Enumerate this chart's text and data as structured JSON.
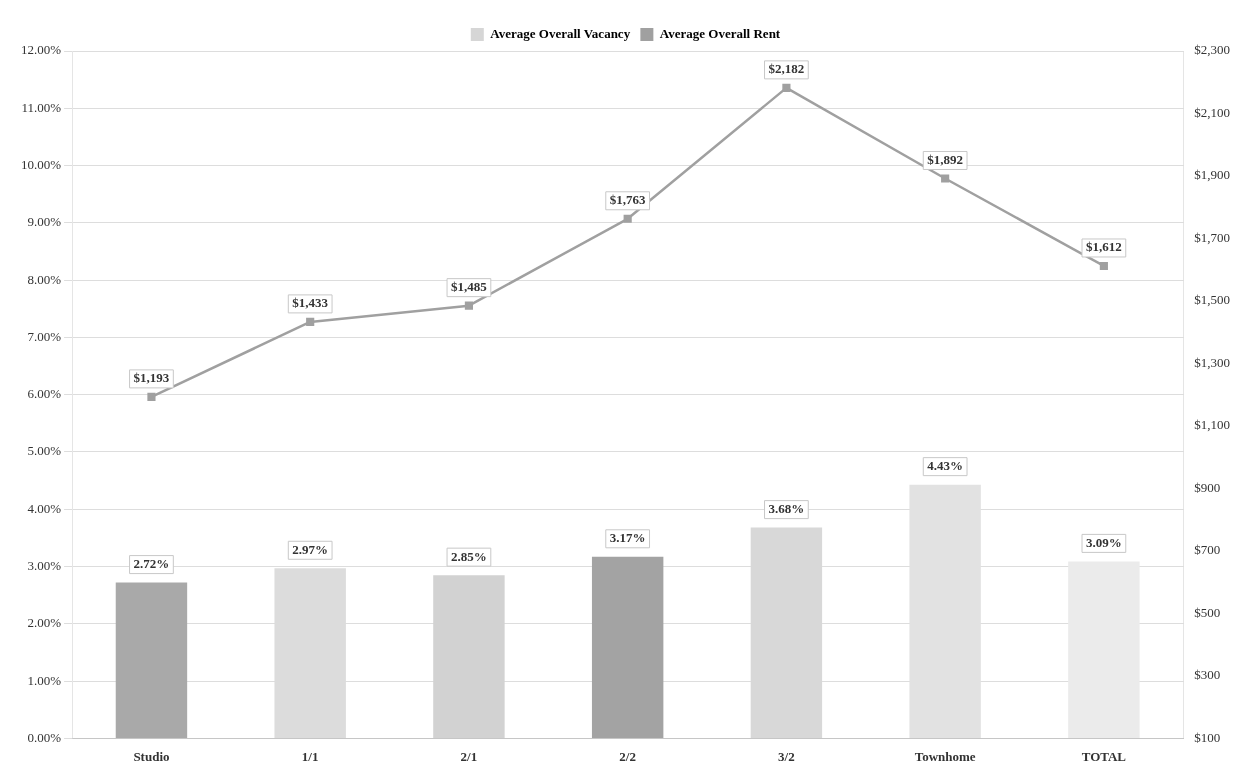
{
  "chart_data": {
    "type": "bar",
    "categories": [
      "Studio",
      "1/1",
      "2/1",
      "2/2",
      "3/2",
      "Townhome",
      "TOTAL"
    ],
    "series": [
      {
        "name": "Average Overall Vacancy",
        "color": "#d6d6d6",
        "colors": [
          "#a9a9a9",
          "#dcdcdc",
          "#d2d2d2",
          "#a3a3a3",
          "#d8d8d8",
          "#e2e2e2",
          "#ebebeb"
        ],
        "values": [
          2.72,
          2.97,
          2.85,
          3.17,
          3.68,
          4.43,
          3.09
        ],
        "value_labels": [
          "2.72%",
          "2.97%",
          "2.85%",
          "3.17%",
          "3.68%",
          "4.43%",
          "3.09%"
        ]
      },
      {
        "name": "Average Overall Rent",
        "type": "line",
        "axis": "y2",
        "color": "#a0a0a0",
        "marker": "square",
        "values": [
          1193,
          1433,
          1485,
          1763,
          2182,
          1892,
          1612
        ],
        "value_labels": [
          "$1,193",
          "$1,433",
          "$1,485",
          "$1,763",
          "$2,182",
          "$1,892",
          "$1,612"
        ]
      }
    ],
    "ylim": [
      0,
      12
    ],
    "yticks": [
      {
        "value": 0,
        "label": "0.00%"
      },
      {
        "value": 1,
        "label": "1.00%"
      },
      {
        "value": 2,
        "label": "2.00%"
      },
      {
        "value": 3,
        "label": "3.00%"
      },
      {
        "value": 4,
        "label": "4.00%"
      },
      {
        "value": 5,
        "label": "5.00%"
      },
      {
        "value": 6,
        "label": "6.00%"
      },
      {
        "value": 7,
        "label": "7.00%"
      },
      {
        "value": 8,
        "label": "8.00%"
      },
      {
        "value": 9,
        "label": "9.00%"
      },
      {
        "value": 10,
        "label": "10.00%"
      },
      {
        "value": 11,
        "label": "11.00%"
      },
      {
        "value": 12,
        "label": "12.00%"
      }
    ],
    "y2lim": [
      100,
      2300
    ],
    "y2ticks": [
      {
        "value": 100,
        "label": "$100"
      },
      {
        "value": 300,
        "label": "$300"
      },
      {
        "value": 500,
        "label": "$500"
      },
      {
        "value": 700,
        "label": "$700"
      },
      {
        "value": 900,
        "label": "$900"
      },
      {
        "value": 1100,
        "label": "$1,100"
      },
      {
        "value": 1300,
        "label": "$1,300"
      },
      {
        "value": 1500,
        "label": "$1,500"
      },
      {
        "value": 1700,
        "label": "$1,700"
      },
      {
        "value": 1900,
        "label": "$1,900"
      },
      {
        "value": 2100,
        "label": "$2,100"
      },
      {
        "value": 2300,
        "label": "$2,300"
      }
    ],
    "grid": "y",
    "legend": "top"
  }
}
